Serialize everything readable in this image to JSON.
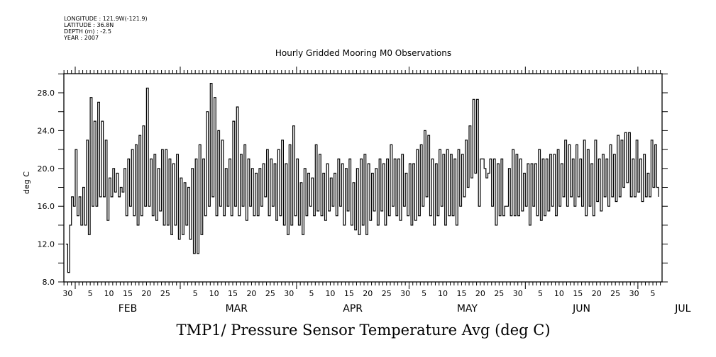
{
  "header": {
    "meta_lines": [
      "LONGITUDE : 121.9W(-121.9)",
      "LATITUDE : 36.8N",
      "DEPTH (m) : -2.5",
      "YEAR : 2007"
    ],
    "title": "Hourly Gridded Mooring M0 Observations"
  },
  "caption": "TMP1/ Pressure Sensor Temperature Avg (deg C)",
  "chart_data": {
    "type": "line",
    "title": "Hourly Gridded Mooring M0 Observations",
    "xlabel": "",
    "ylabel": "deg C",
    "ylim": [
      8.0,
      30.0
    ],
    "y_ticks": [
      8.0,
      12.0,
      16.0,
      20.0,
      24.0,
      28.0
    ],
    "y_tick_labels": [
      "8.0",
      "12.0",
      "16.0",
      "20.0",
      "24.0",
      "28.0"
    ],
    "y_minor_step": 2.0,
    "x_range_days_from_feb1": [
      -3,
      156
    ],
    "x_tick_labels": [
      {
        "day": -2,
        "label": "30"
      },
      {
        "day": 4,
        "label": "5"
      },
      {
        "day": 9,
        "label": "10"
      },
      {
        "day": 14,
        "label": "15"
      },
      {
        "day": 19,
        "label": "20"
      },
      {
        "day": 24,
        "label": "25"
      },
      {
        "day": 32,
        "label": "5"
      },
      {
        "day": 37,
        "label": "10"
      },
      {
        "day": 42,
        "label": "15"
      },
      {
        "day": 47,
        "label": "20"
      },
      {
        "day": 52,
        "label": "25"
      },
      {
        "day": 57,
        "label": "30"
      },
      {
        "day": 63,
        "label": "5"
      },
      {
        "day": 68,
        "label": "10"
      },
      {
        "day": 73,
        "label": "15"
      },
      {
        "day": 78,
        "label": "20"
      },
      {
        "day": 83,
        "label": "25"
      },
      {
        "day": 88,
        "label": "30"
      },
      {
        "day": 93,
        "label": "5"
      },
      {
        "day": 98,
        "label": "10"
      },
      {
        "day": 103,
        "label": "15"
      },
      {
        "day": 108,
        "label": "20"
      },
      {
        "day": 113,
        "label": "25"
      },
      {
        "day": 118,
        "label": "30"
      },
      {
        "day": 124,
        "label": "5"
      },
      {
        "day": 129,
        "label": "10"
      },
      {
        "day": 134,
        "label": "15"
      },
      {
        "day": 139,
        "label": "20"
      },
      {
        "day": 144,
        "label": "25"
      },
      {
        "day": 149,
        "label": "30"
      },
      {
        "day": 154,
        "label": "5"
      }
    ],
    "month_starts": [
      0,
      28,
      59,
      89,
      120,
      150
    ],
    "month_labels": [
      {
        "day": 14,
        "label": "FEB"
      },
      {
        "day": 43,
        "label": "MAR"
      },
      {
        "day": 74,
        "label": "APR"
      },
      {
        "day": 104.5,
        "label": "MAY"
      },
      {
        "day": 135,
        "label": "JUN"
      },
      {
        "day": 162,
        "label": "JUL"
      }
    ],
    "series": [
      {
        "name": "TMP1",
        "x_unit": "day from Feb 1 (half-day samples)",
        "start_day": -2.5,
        "step_days": 0.5,
        "values": [
          12.0,
          9.0,
          14.0,
          17.0,
          16.0,
          22.0,
          15.0,
          17.0,
          14.0,
          18.0,
          14.0,
          23.0,
          13.0,
          27.5,
          16.0,
          25.0,
          16.0,
          27.0,
          17.0,
          25.0,
          17.0,
          23.0,
          14.5,
          19.0,
          17.0,
          20.0,
          17.5,
          19.5,
          17.0,
          18.0,
          17.5,
          20.0,
          15.0,
          21.0,
          16.0,
          22.0,
          15.0,
          22.5,
          14.0,
          23.5,
          15.0,
          24.5,
          16.0,
          28.5,
          16.0,
          21.0,
          15.0,
          21.5,
          14.5,
          20.0,
          15.5,
          22.0,
          14.0,
          22.0,
          14.0,
          21.0,
          13.0,
          20.5,
          14.0,
          21.5,
          12.5,
          19.0,
          13.0,
          18.5,
          14.0,
          18.0,
          12.5,
          20.0,
          11.0,
          21.0,
          11.0,
          22.5,
          13.0,
          21.0,
          15.0,
          26.0,
          16.0,
          29.0,
          17.0,
          27.5,
          15.0,
          24.0,
          16.0,
          23.0,
          15.0,
          20.0,
          16.0,
          21.0,
          15.0,
          25.0,
          16.0,
          26.5,
          15.0,
          21.5,
          16.0,
          22.5,
          14.5,
          21.0,
          16.0,
          20.0,
          15.0,
          19.5,
          15.0,
          20.0,
          16.0,
          20.5,
          17.0,
          22.0,
          15.0,
          21.0,
          16.0,
          20.5,
          14.5,
          22.0,
          15.0,
          23.0,
          14.0,
          20.5,
          13.0,
          22.5,
          14.0,
          24.5,
          15.0,
          21.0,
          14.0,
          18.5,
          13.0,
          20.0,
          15.0,
          19.5,
          16.0,
          19.0,
          15.0,
          22.5,
          15.5,
          21.5,
          15.0,
          19.5,
          14.5,
          20.5,
          15.5,
          19.0,
          16.0,
          19.5,
          15.0,
          21.0,
          16.0,
          20.5,
          14.0,
          20.0,
          15.5,
          21.0,
          14.0,
          18.5,
          13.5,
          20.0,
          13.0,
          21.0,
          14.0,
          21.5,
          13.0,
          20.5,
          14.5,
          19.5,
          15.5,
          20.0,
          14.0,
          21.0,
          15.5,
          20.5,
          14.0,
          21.0,
          15.0,
          22.5,
          16.0,
          21.0,
          15.0,
          21.0,
          14.5,
          21.5,
          16.0,
          19.5,
          15.0,
          20.5,
          14.0,
          20.5,
          14.5,
          22.0,
          15.0,
          22.5,
          16.0,
          24.0,
          17.0,
          23.5,
          15.0,
          21.0,
          14.0,
          20.5,
          15.0,
          22.0,
          16.0,
          21.5,
          14.0,
          22.0,
          15.0,
          21.5,
          15.0,
          21.0,
          14.0,
          22.0,
          16.0,
          21.5,
          17.0,
          23.0,
          18.0,
          24.5,
          19.0,
          27.3,
          19.5,
          27.3,
          16.0,
          21.0,
          21.0,
          20.0,
          19.0,
          19.5,
          21.0,
          16.0,
          21.0,
          14.0,
          20.5,
          15.0,
          21.0,
          15.0,
          16.0,
          16.0,
          20.0,
          15.0,
          22.0,
          15.0,
          21.5,
          15.0,
          21.0,
          15.5,
          19.5,
          16.0,
          20.5,
          14.0,
          20.5,
          16.0,
          20.5,
          15.0,
          22.0,
          14.5,
          21.0,
          15.0,
          21.0,
          15.5,
          21.5,
          16.0,
          21.5,
          15.0,
          22.0,
          16.0,
          20.5,
          17.0,
          23.0,
          16.0,
          22.5,
          17.0,
          21.0,
          16.0,
          22.5,
          17.0,
          21.0,
          16.0,
          23.0,
          15.0,
          22.0,
          16.0,
          20.5,
          15.0,
          23.0,
          16.5,
          21.0,
          15.5,
          21.5,
          17.0,
          21.0,
          16.0,
          22.5,
          17.0,
          21.5,
          16.5,
          23.5,
          17.0,
          23.0,
          18.0,
          23.8,
          18.5,
          23.8,
          17.0,
          21.0,
          17.0,
          23.0,
          17.5,
          21.0,
          16.5,
          21.5,
          17.0,
          19.5,
          17.0,
          23.0,
          18.0,
          22.5,
          18.0,
          17.0
        ]
      }
    ],
    "grid": false,
    "legend": "none"
  }
}
